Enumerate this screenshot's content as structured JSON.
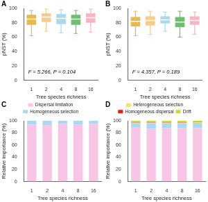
{
  "chart_data": [
    {
      "type": "box",
      "panel": "A",
      "categories": [
        "1",
        "2",
        "4",
        "8",
        "16"
      ],
      "colors": [
        "#E8B84B",
        "#F5CC8F",
        "#A8D8EA",
        "#6DBE6D",
        "#F4B6C2"
      ],
      "min": [
        62,
        68,
        66,
        65,
        67
      ],
      "q1": [
        77,
        81,
        78,
        77,
        80
      ],
      "median": [
        85,
        88,
        86,
        85,
        87
      ],
      "q3": [
        91,
        93,
        92,
        91,
        93
      ],
      "max": [
        97,
        99,
        98,
        97,
        99
      ],
      "x_label": "Tree species richness",
      "y_label": "pNST (%)",
      "annotation": "F = 5.266, P = 0.104",
      "ylim": [
        0,
        100
      ],
      "yticks": [
        0,
        20,
        40,
        60,
        80,
        100
      ],
      "grid": false
    },
    {
      "type": "box",
      "panel": "B",
      "categories": [
        "1",
        "2",
        "4",
        "8",
        "16"
      ],
      "colors": [
        "#E8B84B",
        "#F5CC8F",
        "#A8D8EA",
        "#6DBE6D",
        "#F4B6C2"
      ],
      "min": [
        62,
        64,
        68,
        60,
        64
      ],
      "q1": [
        75,
        76,
        79,
        74,
        77
      ],
      "median": [
        82,
        83,
        84,
        81,
        83
      ],
      "q3": [
        88,
        89,
        89,
        88,
        89
      ],
      "max": [
        96,
        96,
        95,
        96,
        95
      ],
      "x_label": "Tree species richness",
      "y_label": "pNST (%)",
      "annotation": "F = 4.357, P = 0.189",
      "ylim": [
        0,
        100
      ],
      "yticks": [
        0,
        20,
        40,
        60,
        80,
        100
      ],
      "grid": false
    },
    {
      "type": "bar",
      "panel": "C",
      "stacked": true,
      "categories": [
        "1",
        "2",
        "4",
        "8",
        "16"
      ],
      "series": [
        {
          "name": "Dispersal limitation",
          "color": "#F7C5E6",
          "values": [
            94,
            93,
            95,
            94,
            95
          ]
        },
        {
          "name": "Homogeneous selection",
          "color": "#A9D9F2",
          "values": [
            6,
            7,
            5,
            6,
            5
          ]
        }
      ],
      "x_label": "Tree species richness",
      "y_label": "Relative importance (%)",
      "ylim": [
        0,
        100
      ],
      "yticks": [
        0,
        20,
        40,
        60,
        80,
        100
      ],
      "grid": false,
      "legend": "top"
    },
    {
      "type": "bar",
      "panel": "D",
      "stacked": true,
      "categories": [
        "1",
        "2",
        "4",
        "8",
        "16"
      ],
      "series": [
        {
          "color": "#F7C5E6",
          "values": [
            89,
            87,
            88,
            88,
            88
          ]
        },
        {
          "color": "#A9D9F2",
          "values": [
            7,
            9,
            8,
            8,
            8.5
          ]
        },
        {
          "name": "Heterogeneous selection",
          "color": "#F5E663",
          "values": [
            1,
            1,
            1,
            1,
            1
          ]
        },
        {
          "name": "Homogeneous dispersal",
          "color": "#E0201B",
          "values": [
            0.5,
            0.5,
            0.5,
            0.5,
            0.5
          ]
        },
        {
          "name": "Drift",
          "color": "#C8D840",
          "values": [
            2.5,
            2.5,
            2.5,
            2.5,
            2
          ]
        }
      ],
      "x_label": "Tree species richness",
      "y_label": "Relative importance (%)",
      "ylim": [
        0,
        100
      ],
      "yticks": [
        0,
        20,
        40,
        60,
        80,
        100
      ],
      "grid": false,
      "legend": "top"
    }
  ]
}
